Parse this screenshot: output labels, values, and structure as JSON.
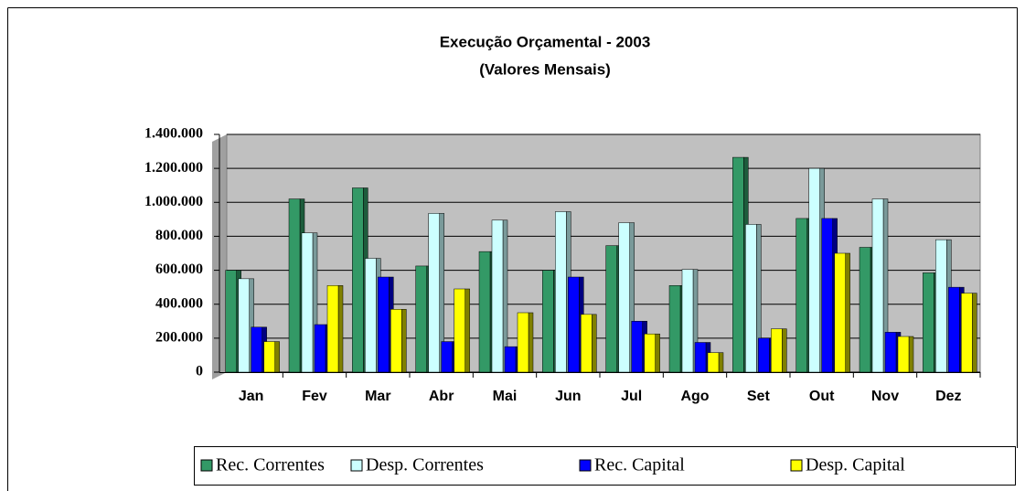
{
  "chart_data": {
    "type": "bar",
    "title": "Execução   Orçamental - 2003",
    "subtitle": "(Valores Mensais)",
    "categories": [
      "Jan",
      "Fev",
      "Mar",
      "Abr",
      "Mai",
      "Jun",
      "Jul",
      "Ago",
      "Set",
      "Out",
      "Nov",
      "Dez"
    ],
    "series": [
      {
        "name": "Rec. Correntes",
        "color": "#339966",
        "values": [
          600000,
          1020000,
          1085000,
          625000,
          710000,
          600000,
          745000,
          510000,
          1265000,
          905000,
          735000,
          585000
        ]
      },
      {
        "name": "Desp. Correntes",
        "color": "#ccffff",
        "values": [
          550000,
          820000,
          670000,
          935000,
          895000,
          945000,
          880000,
          605000,
          870000,
          1200000,
          1020000,
          780000
        ]
      },
      {
        "name": "Rec. Capital",
        "color": "#0000ff",
        "values": [
          265000,
          280000,
          560000,
          180000,
          150000,
          560000,
          300000,
          175000,
          200000,
          905000,
          235000,
          500000
        ]
      },
      {
        "name": "Desp. Capital",
        "color": "#ffff00",
        "values": [
          180000,
          510000,
          370000,
          490000,
          350000,
          340000,
          225000,
          115000,
          255000,
          700000,
          210000,
          465000
        ]
      }
    ],
    "ylim": [
      0,
      1400000
    ],
    "yticks": [
      0,
      {
        "value": 200000,
        "label": "200.000"
      },
      {
        "value": 400000,
        "label": "400.000"
      },
      {
        "value": 600000,
        "label": "600.000"
      },
      {
        "value": 800000,
        "label": "800.000"
      },
      {
        "value": 1000000,
        "label": "1.000.000"
      },
      {
        "value": 1200000,
        "label": "1.200.000"
      },
      {
        "value": 1400000,
        "label": "1.400.000"
      }
    ],
    "grid": true,
    "legend": "bottom"
  }
}
